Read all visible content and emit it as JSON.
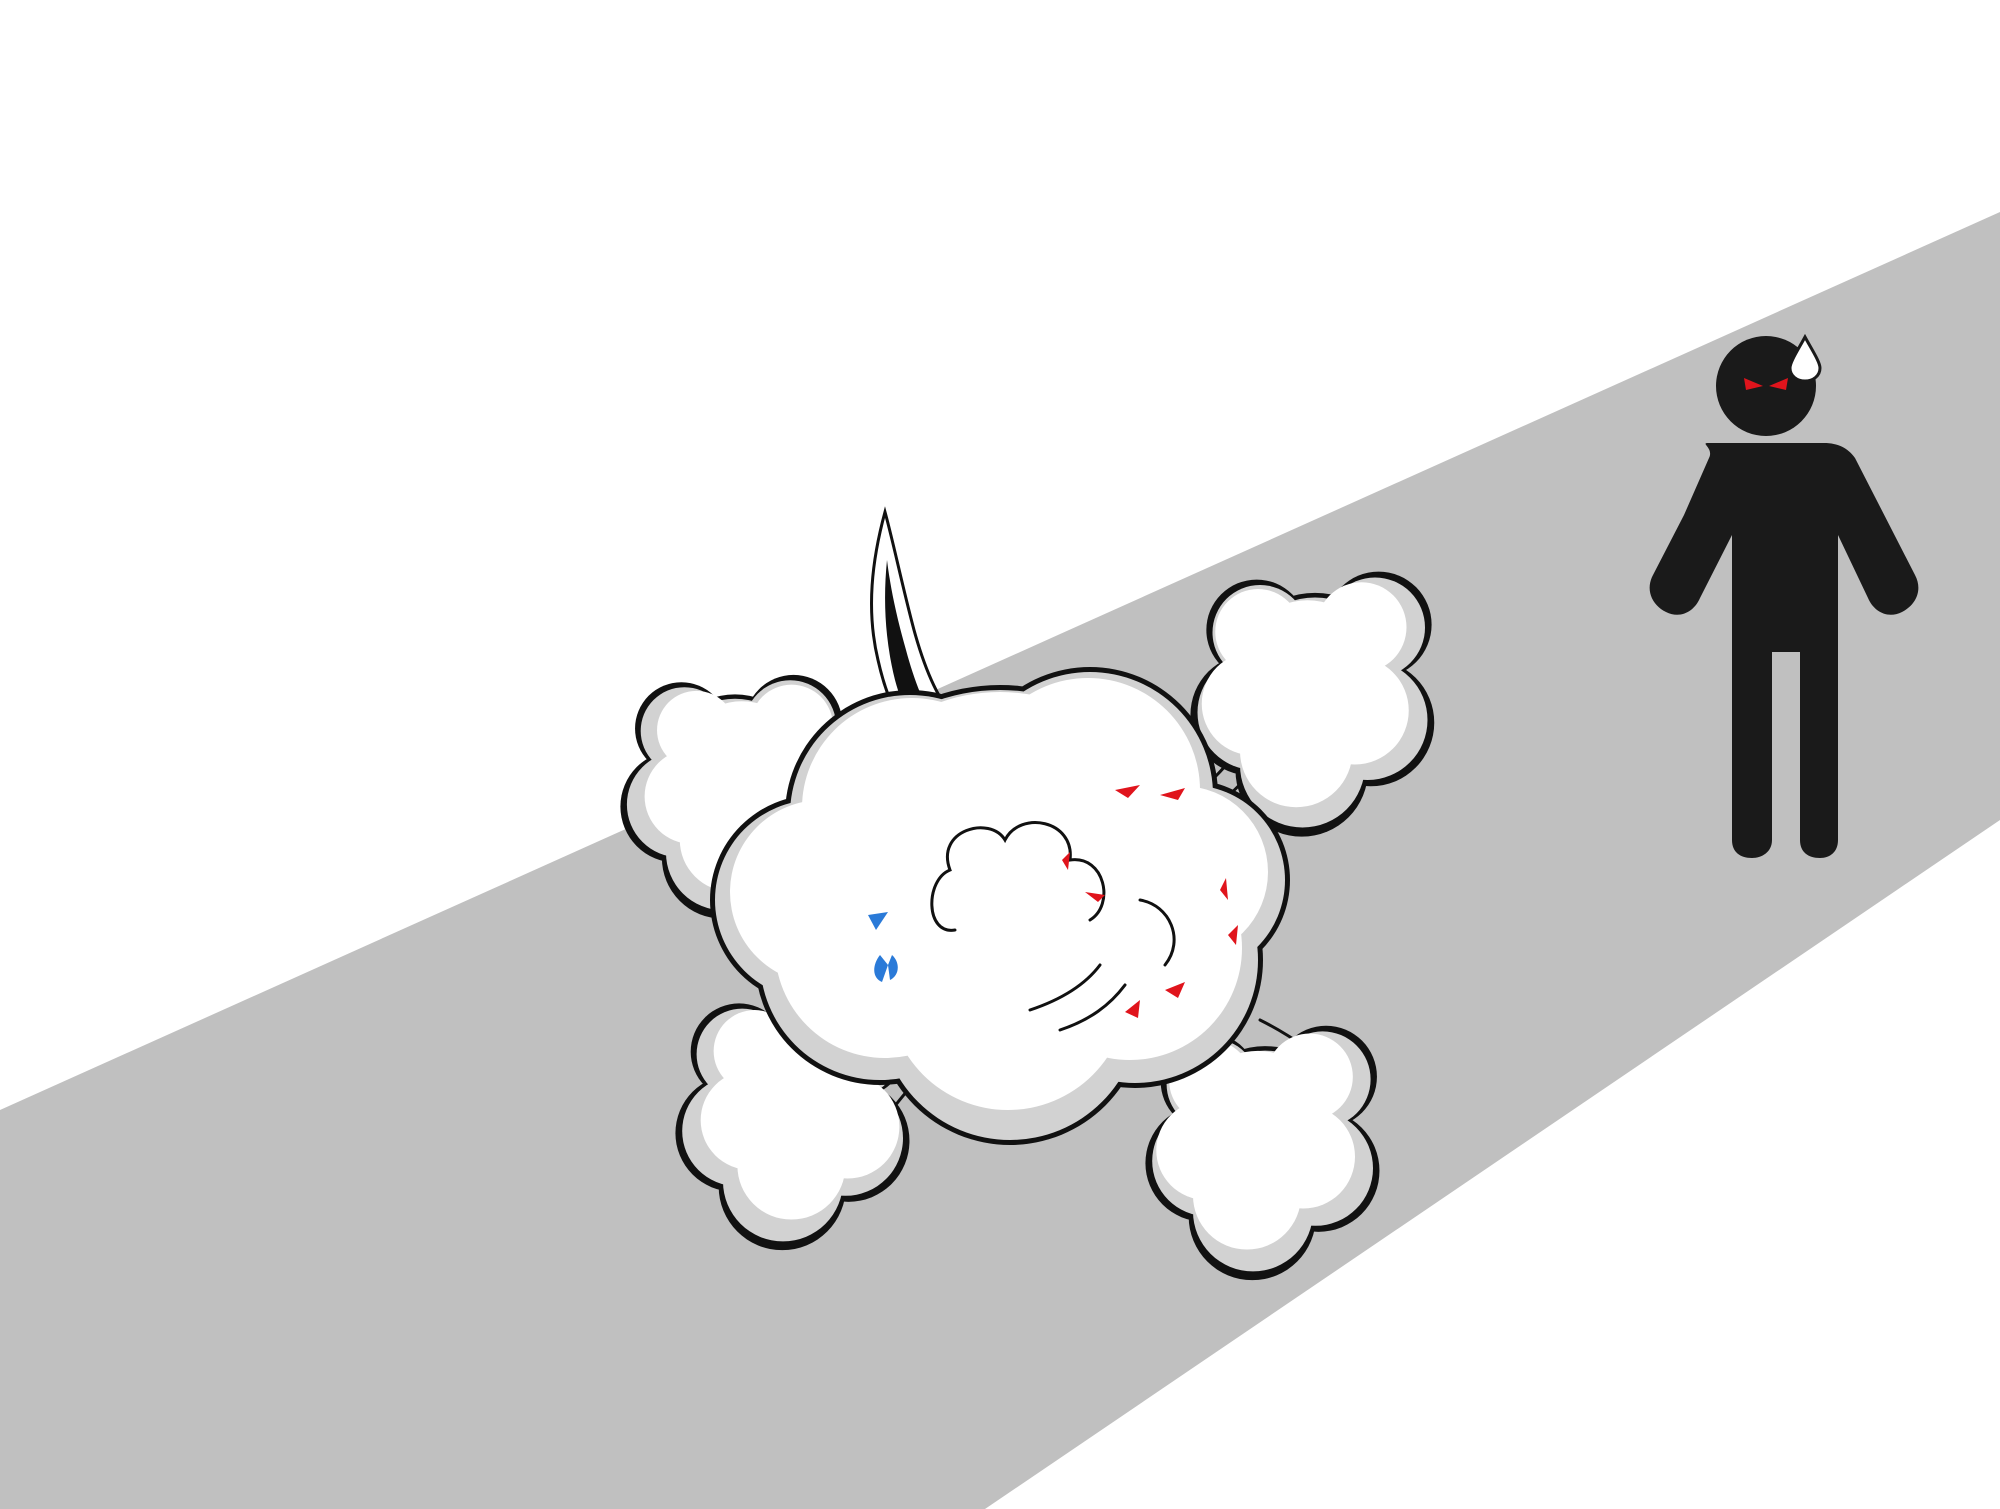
{
  "scene": {
    "background_color": "#ffffff",
    "road_color": "#c0c0c0",
    "figure_color": "#1a1a1a",
    "figure_eye_color": "#e0141c",
    "sweat_drop_color": "#ffffff",
    "cloud_fill": "#ffffff",
    "cloud_shade": "#d2d2d2",
    "cloud_outline": "#111111",
    "brawl_eye_color_left": "#2a7ad8",
    "brawl_eye_color_right": "#e0141c"
  },
  "graphics": {
    "road": "diagonal-road",
    "fight_cloud": "fight-dust-cloud",
    "knife": "knife-blade",
    "figure": "standing-stick-figure",
    "sweat": "sweat-drop-icon"
  }
}
